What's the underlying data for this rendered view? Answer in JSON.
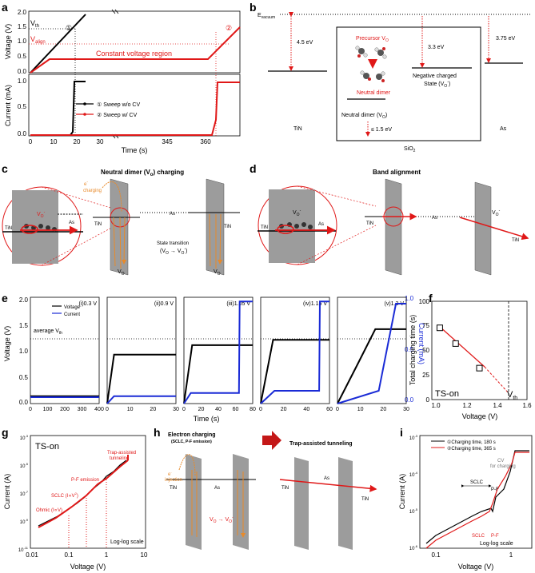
{
  "colors": {
    "red": "#e01818",
    "black": "#000000",
    "blue": "#1a2bd6",
    "orange": "#e88a2a",
    "gray": "#9a9a9a"
  },
  "panels": {
    "a": {
      "label": "a",
      "ylabel_top": "Voltage (V)",
      "ylabel_bottom": "Current (mA)",
      "xlabel": "Time (s)",
      "vth": "V",
      "vth_sub": "th",
      "valign": "V",
      "valign_sub": "align",
      "cv_region": "Constant voltage region",
      "mark1": "①",
      "mark2": "②",
      "legend": [
        "① Sweep w/o CV",
        "② Sweep w/ CV"
      ],
      "v_ticks": [
        "0.0",
        "0.5",
        "1.0",
        "1.5",
        "2.0"
      ],
      "i_ticks": [
        "0.0",
        "0.5",
        "1.0"
      ],
      "x_ticks": [
        "0",
        "10",
        "20",
        "30",
        "345",
        "360"
      ]
    },
    "b": {
      "label": "b",
      "evac": "E",
      "evac_sub": "vacuum",
      "tin_wf": "4.5 eV",
      "as_wf": "3.75 eV",
      "neg_gap": "3.3 eV",
      "precursor": "Precursor V",
      "precursor_sub": "O",
      "neutral": "Neutral dimer",
      "neg_state": "Negative charged",
      "neg_state2": "State (V",
      "neg_state_sub": "O",
      "neg_state_sup": "-",
      "neg_state_end": ")",
      "dimer_level": "Neutral dimer (V",
      "dimer_sub": "O",
      "dimer_end": ")",
      "le": "≤ 1.5 eV",
      "tin": "TiN",
      "as": "As",
      "sio2": "SiO",
      "sio2_sub": "2"
    },
    "c": {
      "label": "c",
      "title": "Neutral dimer (V",
      "title_sub": "o",
      "title_end": ") charging",
      "echarge": "e",
      "echarge_sup": "-",
      "echarge2": "charging",
      "vo": "V",
      "vo_sub": "O",
      "vo_sup": "-",
      "tin": "TiN",
      "as": "As",
      "state": "State transition",
      "state2": "(V",
      "state2_sub": "O",
      "state2_arrow": " → V",
      "state2_sub2": "O",
      "state2_sup": "-",
      "state2_end": ")"
    },
    "d": {
      "label": "d",
      "title": "Band alignment",
      "vo": "V",
      "vo_sub": "O",
      "vo_sup": "-",
      "tin": "TiN",
      "as": "As"
    },
    "e": {
      "label": "e",
      "ylabel": "Voltage (V)",
      "ylabel_r": "Current (mA)",
      "xlabel": "Time (s)",
      "legend": [
        "Voltage",
        "Current"
      ],
      "avg": "average V",
      "avg_sub": "th",
      "subs": [
        "(i)0.3 V",
        "(ii)0.9 V",
        "(iii)1.05 V",
        "(iv)1.15 V",
        "(v)1.3 V"
      ],
      "v_ticks": [
        "0.0",
        "0.5",
        "1.0",
        "1.5",
        "2.0"
      ],
      "i_ticks": [
        "0.0",
        "0.5",
        "1.0"
      ],
      "x1_ticks": [
        "0",
        "100",
        "200",
        "300",
        "400"
      ],
      "x2_ticks": [
        "0",
        "10",
        "20",
        "30"
      ],
      "x3_ticks": [
        "0",
        "20",
        "40",
        "60",
        "80"
      ],
      "x4_ticks": [
        "0",
        "20",
        "40",
        "60"
      ],
      "x5_ticks": [
        "0",
        "10",
        "20",
        "30"
      ]
    },
    "f": {
      "label": "f",
      "ylabel": "Total charging time (s)",
      "xlabel": "Voltage (V)",
      "tson": "TS-on",
      "vth": "V",
      "vth_sub": "th",
      "y_ticks": [
        "0",
        "25",
        "50",
        "75",
        "100"
      ],
      "x_ticks": [
        "1.0",
        "1.2",
        "1.4",
        "1.6"
      ]
    },
    "g": {
      "label": "g",
      "ylabel": "Current (A)",
      "xlabel": "Voltage (V)",
      "tson": "TS-on",
      "trap": "Trap-assisted",
      "trap2": "tunneling",
      "pf": "P-F emission",
      "sclc": "SCLC (I∝V",
      "sclc_sup": "2",
      "sclc_end": ")",
      "ohm": "Ohmic (I∝V)",
      "scale": "Log-log scale",
      "x_ticks": [
        "0.01",
        "0.1",
        "1",
        "10"
      ]
    },
    "h": {
      "label": "h",
      "title1": "Electron charging",
      "title1b": "(SCLC, P-F emission)",
      "title2": "Trap-assisted tunneling",
      "inj": "e",
      "inj_sup": "-",
      "inj2": "injection",
      "vo_tr": "V",
      "vo_tr_sub": "O",
      "vo_tr_arrow": " → V",
      "vo_tr_sub2": "O",
      "vo_tr_sup": "-",
      "tin": "TiN",
      "as": "As"
    },
    "i": {
      "label": "i",
      "ylabel": "Current (A)",
      "xlabel": "Voltage (V)",
      "legend": [
        "①Charging time, 180 s",
        "②Charging time, 365 s"
      ],
      "cv": "CV",
      "cv2": "for charging",
      "sclc": "SCLC",
      "pf": "P-F",
      "scale": "Log-log scale",
      "x_ticks": [
        "0.1",
        "1"
      ]
    }
  },
  "chart_data": [
    {
      "type": "line",
      "panel": "a",
      "xlabel": "Time (s)",
      "ylabel": "Voltage (V)",
      "series": [
        {
          "name": "Sweep w/o CV",
          "x": [
            0,
            23
          ],
          "y": [
            0,
            2.0
          ]
        },
        {
          "name": "Sweep w/ CV",
          "x": [
            0,
            9,
            359,
            368
          ],
          "y": [
            0,
            0.5,
            0.5,
            1.6
          ]
        }
      ]
    },
    {
      "type": "line",
      "panel": "a",
      "xlabel": "Time (s)",
      "ylabel": "Current (mA)",
      "series": [
        {
          "name": "Sweep w/o CV",
          "x": [
            0,
            17,
            18,
            19,
            23
          ],
          "y": [
            0,
            0,
            0.05,
            1.0,
            1.0
          ]
        },
        {
          "name": "Sweep w/ CV",
          "x": [
            0,
            358,
            362,
            363,
            368
          ],
          "y": [
            0,
            0.05,
            0.3,
            1.0,
            1.0
          ]
        }
      ]
    },
    {
      "type": "scatter",
      "panel": "f",
      "xlabel": "Voltage (V)",
      "ylabel": "Total charging time (s)",
      "x": [
        1.05,
        1.15,
        1.3
      ],
      "y": [
        73,
        57,
        32
      ],
      "xlim": [
        1.0,
        1.6
      ],
      "ylim": [
        0,
        100
      ]
    }
  ]
}
